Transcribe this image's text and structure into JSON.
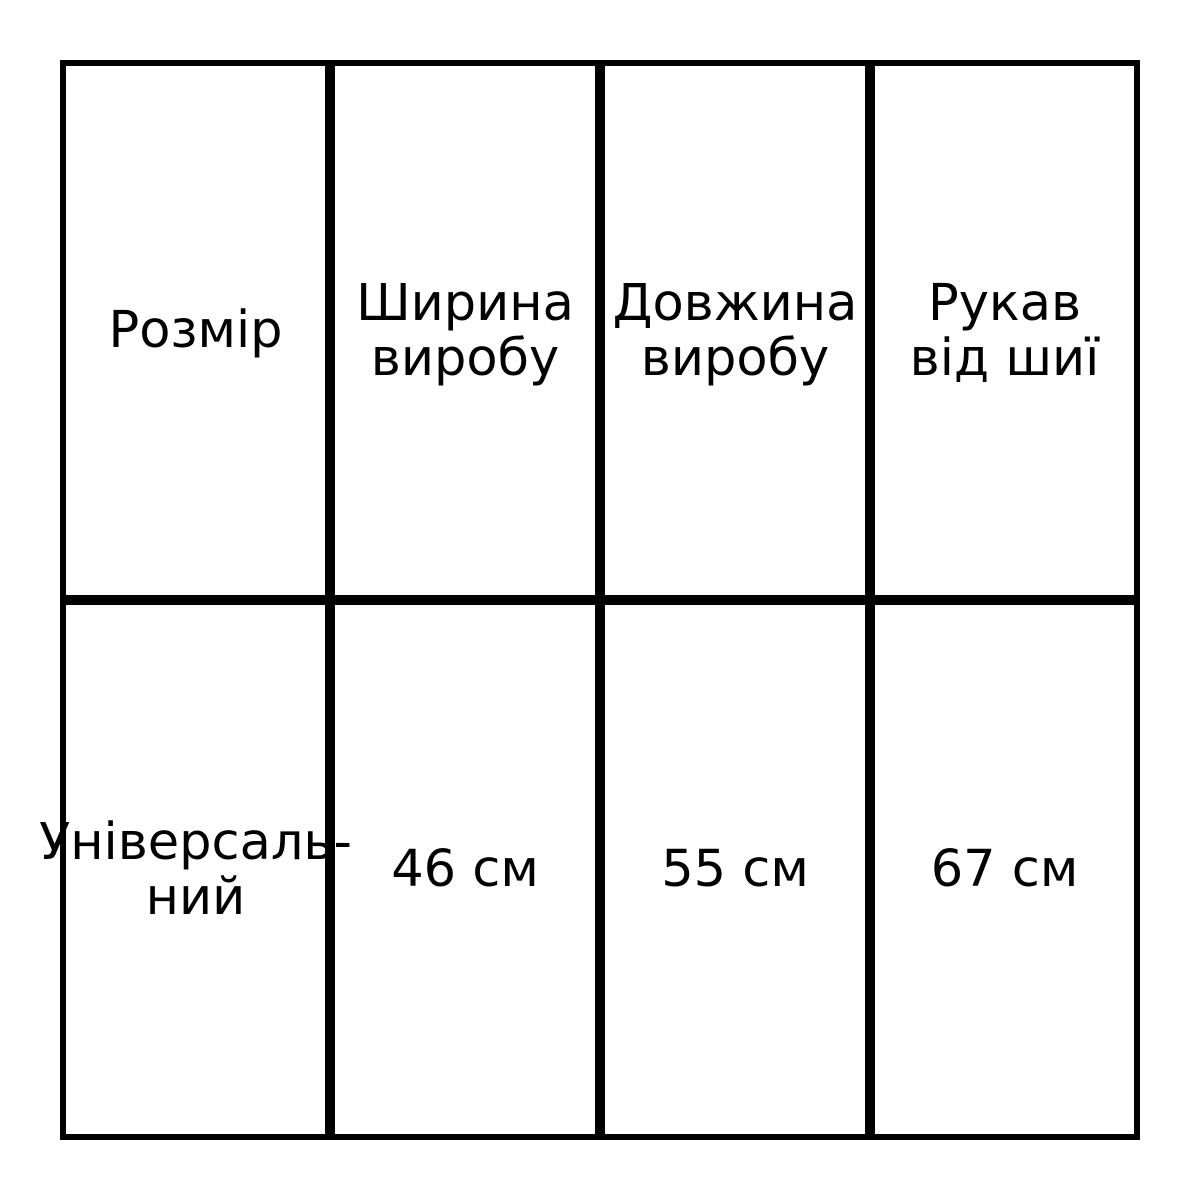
{
  "table": {
    "headers": [
      "Розмір",
      "Ширина\nвиробу",
      "Довжина\nвиробу",
      "Рукав\nвід шиї"
    ],
    "rows": [
      [
        "Універсаль-\nний",
        "46 см",
        "55 см",
        "67 см"
      ]
    ]
  }
}
